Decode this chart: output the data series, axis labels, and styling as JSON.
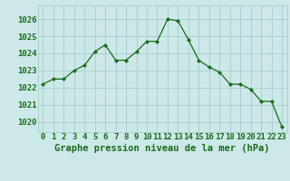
{
  "hours": [
    0,
    1,
    2,
    3,
    4,
    5,
    6,
    7,
    8,
    9,
    10,
    11,
    12,
    13,
    14,
    15,
    16,
    17,
    18,
    19,
    20,
    21,
    22,
    23
  ],
  "pressure": [
    1022.2,
    1022.5,
    1022.5,
    1023.0,
    1023.3,
    1024.1,
    1024.5,
    1023.6,
    1023.6,
    1024.1,
    1024.7,
    1024.7,
    1026.0,
    1025.9,
    1024.8,
    1023.6,
    1023.2,
    1022.9,
    1022.2,
    1022.2,
    1021.9,
    1021.2,
    1021.2,
    1019.7
  ],
  "bg_color": "#cce8e8",
  "grid_color": "#aacccc",
  "line_color": "#1a6b1a",
  "marker_color": "#1a6b1a",
  "text_color": "#1a6b1a",
  "title": "Graphe pression niveau de la mer (hPa)",
  "ymin": 1019.4,
  "ymax": 1026.8,
  "yticks": [
    1020,
    1021,
    1022,
    1023,
    1024,
    1025,
    1026
  ],
  "tick_fontsize": 6.5,
  "title_fontsize": 7.5
}
